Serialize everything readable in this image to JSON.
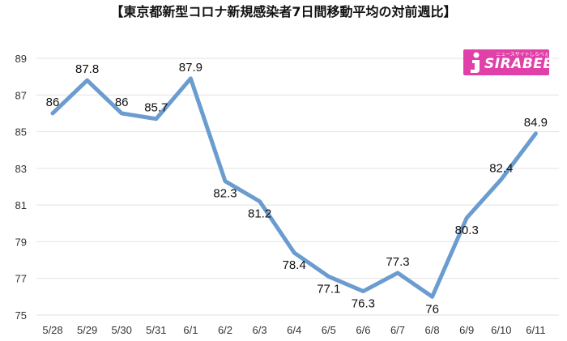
{
  "colors": {
    "series": "#6b9ccf",
    "logo_bg": "#e040a8"
  },
  "logo": {
    "icon": "sirabee-i-icon",
    "text": "SIRABEE",
    "subtext": "ニュースサイトしらべぇ"
  },
  "chart_data": {
    "type": "line",
    "title": "【東京都新型コロナ新規感染者7日間移動平均の対前週比】",
    "xlabel": "",
    "ylabel": "",
    "categories": [
      "5/28",
      "5/29",
      "5/30",
      "5/31",
      "6/1",
      "6/2",
      "6/3",
      "6/4",
      "6/5",
      "6/6",
      "6/7",
      "6/8",
      "6/9",
      "6/10",
      "6/11"
    ],
    "series": [
      {
        "values": [
          86,
          87.8,
          86,
          85.7,
          87.9,
          82.3,
          81.2,
          78.4,
          77.1,
          76.3,
          77.3,
          76,
          80.3,
          82.4,
          84.9
        ]
      }
    ],
    "data_labels": [
      "86",
      "87.8",
      "86",
      "85.7",
      "87.9",
      "82.3",
      "81.2",
      "78.4",
      "77.1",
      "76.3",
      "77.3",
      "76",
      "80.3",
      "82.4",
      "84.9"
    ],
    "ylim": [
      75,
      89
    ],
    "yticks": [
      75,
      77,
      79,
      81,
      83,
      85,
      87,
      89
    ],
    "grid": true,
    "legend": "none"
  }
}
